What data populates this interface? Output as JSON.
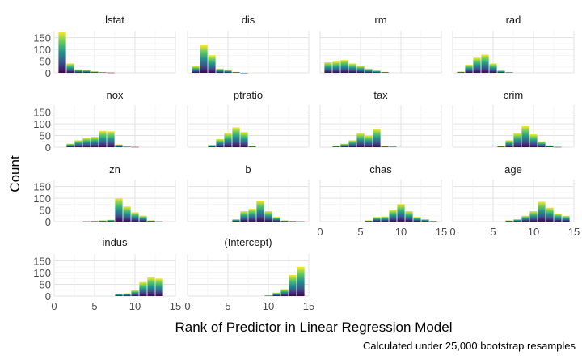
{
  "chart_data": {
    "type": "bar",
    "facet_order": [
      "lstat",
      "dis",
      "rm",
      "rad",
      "nox",
      "ptratio",
      "tax",
      "crim",
      "zn",
      "b",
      "chas",
      "age",
      "indus",
      "(Intercept)"
    ],
    "xlabel": "Rank of Predictor in Linear Regression Model",
    "ylabel": "Count",
    "caption": "Calculated under 25,000 bootstrap resamples",
    "x_ticks": [
      0,
      5,
      10,
      15
    ],
    "x_tick_labels": [
      "0",
      "5",
      "10",
      "15"
    ],
    "y_ticks": [
      0,
      50,
      100,
      150
    ],
    "y_tick_labels": [
      "0",
      "50",
      "100",
      "150"
    ],
    "xlim": [
      0,
      15
    ],
    "ylim": [
      0,
      180
    ],
    "grid": true,
    "fill_gradient": [
      "#440154",
      "#3b528b",
      "#21918c",
      "#5ec962",
      "#fde725"
    ],
    "panels": [
      {
        "name": "lstat",
        "x": [
          1,
          2,
          3,
          4,
          5,
          6,
          7
        ],
        "values": [
          175,
          40,
          15,
          12,
          6,
          3,
          2
        ]
      },
      {
        "name": "dis",
        "x": [
          1,
          2,
          3,
          4,
          5,
          6,
          7
        ],
        "values": [
          28,
          118,
          75,
          18,
          12,
          4,
          1
        ]
      },
      {
        "name": "rm",
        "x": [
          1,
          2,
          3,
          4,
          5,
          6,
          7,
          8
        ],
        "values": [
          45,
          48,
          55,
          40,
          30,
          18,
          10,
          4
        ]
      },
      {
        "name": "rad",
        "x": [
          1,
          2,
          3,
          4,
          5,
          6,
          7
        ],
        "values": [
          5,
          35,
          65,
          78,
          40,
          10,
          3
        ]
      },
      {
        "name": "nox",
        "x": [
          2,
          3,
          4,
          5,
          6,
          7,
          8,
          9,
          10
        ],
        "values": [
          15,
          30,
          40,
          45,
          70,
          68,
          12,
          3,
          2
        ]
      },
      {
        "name": "ptratio",
        "x": [
          3,
          4,
          5,
          6,
          7,
          8
        ],
        "values": [
          10,
          35,
          60,
          85,
          65,
          5
        ]
      },
      {
        "name": "tax",
        "x": [
          2,
          3,
          4,
          5,
          6,
          7,
          8,
          9
        ],
        "values": [
          5,
          15,
          30,
          60,
          50,
          78,
          5,
          3
        ]
      },
      {
        "name": "crim",
        "x": [
          6,
          7,
          8,
          9,
          10,
          11,
          12,
          13
        ],
        "values": [
          5,
          30,
          60,
          90,
          55,
          25,
          8,
          2
        ]
      },
      {
        "name": "zn",
        "x": [
          4,
          5,
          6,
          7,
          8,
          9,
          10,
          11,
          12,
          13
        ],
        "values": [
          2,
          3,
          5,
          8,
          100,
          65,
          40,
          25,
          5,
          2
        ]
      },
      {
        "name": "b",
        "x": [
          6,
          7,
          8,
          9,
          10,
          11,
          12,
          13,
          14
        ],
        "values": [
          10,
          45,
          55,
          90,
          45,
          20,
          5,
          3,
          2
        ]
      },
      {
        "name": "chas",
        "x": [
          6,
          7,
          8,
          9,
          10,
          11,
          12,
          13,
          14
        ],
        "values": [
          5,
          20,
          22,
          50,
          75,
          45,
          20,
          10,
          3
        ]
      },
      {
        "name": "age",
        "x": [
          7,
          8,
          9,
          10,
          11,
          12,
          13,
          14
        ],
        "values": [
          5,
          10,
          25,
          45,
          85,
          60,
          35,
          25
        ]
      },
      {
        "name": "indus",
        "x": [
          8,
          9,
          10,
          11,
          12,
          13
        ],
        "values": [
          10,
          12,
          25,
          60,
          80,
          75
        ]
      },
      {
        "name": "(Intercept)",
        "x": [
          10,
          11,
          12,
          13,
          14
        ],
        "values": [
          3,
          15,
          30,
          90,
          125
        ]
      }
    ]
  }
}
